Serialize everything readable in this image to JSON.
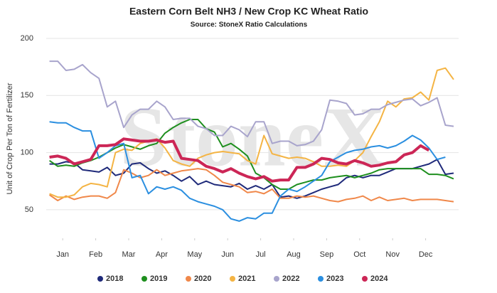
{
  "chart_data": {
    "type": "line",
    "title": "Eastern Corn Belt NH3 / New Crop KC Wheat Ratio",
    "subtitle": "Source: StoneX Ratio Calculations",
    "y_label": "Unit of Crop Per Ton of Fertilizer",
    "watermark": "StoneX",
    "x": [
      0.6,
      0.85,
      1.1,
      1.35,
      1.6,
      1.85,
      2.1,
      2.35,
      2.6,
      2.85,
      3.1,
      3.35,
      3.6,
      3.85,
      4.1,
      4.35,
      4.6,
      4.85,
      5.1,
      5.35,
      5.6,
      5.85,
      6.1,
      6.35,
      6.6,
      6.85,
      7.1,
      7.35,
      7.6,
      7.85,
      8.1,
      8.35,
      8.6,
      8.85,
      9.1,
      9.35,
      9.6,
      9.85,
      10.1,
      10.35,
      10.6,
      10.85,
      11.1,
      11.35,
      11.6,
      11.85,
      12.1,
      12.35,
      12.6,
      12.85
    ],
    "xlim": [
      0.5,
      13
    ],
    "xticks": [
      {
        "value": 1,
        "label": "Jan"
      },
      {
        "value": 2,
        "label": "Feb"
      },
      {
        "value": 3,
        "label": "Mar"
      },
      {
        "value": 4,
        "label": "Apr"
      },
      {
        "value": 5,
        "label": "May"
      },
      {
        "value": 6,
        "label": "Jun"
      },
      {
        "value": 7,
        "label": "Jul"
      },
      {
        "value": 8,
        "label": "Aug"
      },
      {
        "value": 9,
        "label": "Sep"
      },
      {
        "value": 10,
        "label": "Oct"
      },
      {
        "value": 11,
        "label": "Nov"
      },
      {
        "value": 12,
        "label": "Dec"
      }
    ],
    "ylim": [
      25,
      200
    ],
    "yticks": [
      50,
      100,
      150,
      200
    ],
    "grid": true,
    "legend": "bottom",
    "series": [
      {
        "name": "2018",
        "color": "#1f2a7a",
        "values": [
          90,
          90,
          92,
          91,
          85,
          84,
          83,
          87,
          80,
          82,
          90,
          91,
          86,
          82,
          84,
          80,
          75,
          79,
          72,
          75,
          72,
          71,
          70,
          73,
          68,
          71,
          68,
          72,
          61,
          62,
          60,
          62,
          65,
          68,
          70,
          72,
          78,
          80,
          78,
          80,
          80,
          83,
          86,
          86,
          86,
          88,
          90,
          94,
          81,
          82
        ]
      },
      {
        "name": "2019",
        "color": "#1e8f1e",
        "values": [
          93,
          88,
          89,
          88,
          91,
          93,
          96,
          100,
          104,
          107,
          105,
          103,
          106,
          108,
          117,
          122,
          126,
          129,
          129,
          121,
          118,
          105,
          108,
          103,
          97,
          82,
          78,
          72,
          68,
          68,
          72,
          74,
          76,
          76,
          78,
          79,
          80,
          78,
          80,
          82,
          85,
          86,
          86,
          86,
          86,
          86,
          81,
          81,
          80,
          77
        ]
      },
      {
        "name": "2020",
        "color": "#f0884a",
        "values": [
          63,
          58,
          62,
          59,
          61,
          62,
          62,
          60,
          65,
          85,
          82,
          78,
          80,
          85,
          80,
          82,
          84,
          85,
          86,
          85,
          80,
          74,
          72,
          70,
          65,
          66,
          64,
          68,
          60,
          60,
          62,
          61,
          62,
          60,
          58,
          57,
          59,
          60,
          62,
          58,
          61,
          58,
          59,
          60,
          58,
          59,
          59,
          59,
          58,
          57
        ]
      },
      {
        "name": "2021",
        "color": "#f4b444",
        "values": [
          64,
          61,
          61,
          63,
          70,
          73,
          72,
          70,
          100,
          103,
          102,
          108,
          110,
          112,
          104,
          93,
          90,
          88,
          95,
          98,
          100,
          101,
          100,
          99,
          93,
          90,
          115,
          99,
          97,
          95,
          96,
          95,
          92,
          88,
          88,
          89,
          88,
          93,
          100,
          114,
          127,
          145,
          140,
          147,
          148,
          153,
          146,
          172,
          174,
          164
        ]
      },
      {
        "name": "2022",
        "color": "#a8a4cc",
        "values": [
          180,
          180,
          172,
          173,
          177,
          170,
          165,
          140,
          145,
          122,
          133,
          138,
          138,
          145,
          140,
          129,
          130,
          130,
          123,
          121,
          115,
          115,
          123,
          120,
          114,
          127,
          127,
          108,
          110,
          110,
          106,
          107,
          110,
          120,
          146,
          145,
          143,
          133,
          134,
          138,
          138,
          142,
          144,
          146,
          147,
          141,
          144,
          148,
          124,
          123
        ]
      },
      {
        "name": "2023",
        "color": "#2b8fe0",
        "values": [
          127,
          126,
          126,
          122,
          119,
          119,
          95,
          100,
          106,
          108,
          78,
          80,
          64,
          70,
          68,
          70,
          67,
          60,
          57,
          55,
          53,
          50,
          42,
          40,
          43,
          42,
          47,
          47,
          62,
          68,
          66,
          70,
          75,
          80,
          92,
          96,
          100,
          102,
          103,
          105,
          106,
          104,
          106,
          110,
          115,
          111,
          104,
          94,
          96,
          null
        ]
      },
      {
        "name": "2024",
        "color": "#cc2656",
        "values": [
          96,
          97,
          95,
          90,
          92,
          94,
          106,
          106,
          107,
          112,
          111,
          110,
          110,
          111,
          109,
          110,
          95,
          94,
          93,
          88,
          86,
          83,
          86,
          82,
          79,
          77,
          79,
          75,
          76,
          76,
          87,
          87,
          90,
          95,
          94,
          91,
          90,
          93,
          91,
          88,
          89,
          91,
          92,
          98,
          100,
          106,
          102,
          null,
          null,
          null
        ]
      }
    ]
  }
}
